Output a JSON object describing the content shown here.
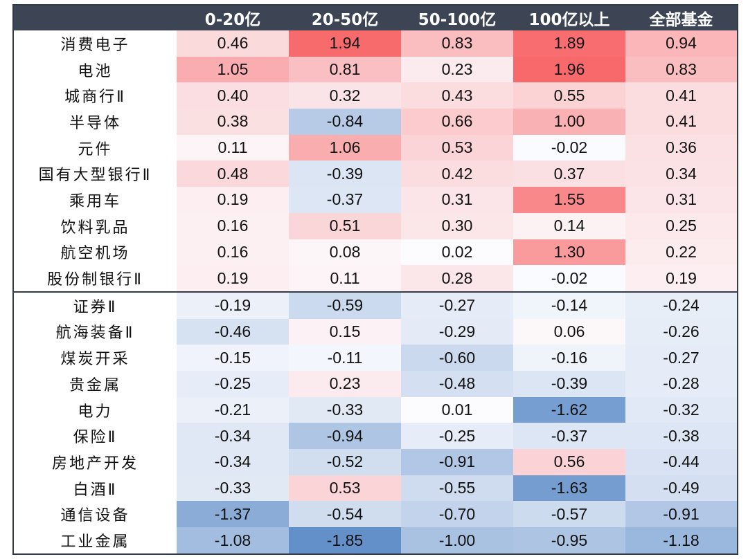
{
  "chart_data": {
    "type": "heatmap",
    "columns": [
      "0-20亿",
      "20-50亿",
      "50-100亿",
      "100亿以上",
      "全部基金"
    ],
    "rows": [
      {
        "label": "消费电子",
        "values": [
          0.46,
          1.94,
          0.83,
          1.89,
          0.94
        ]
      },
      {
        "label": "电池",
        "values": [
          1.05,
          0.81,
          0.23,
          1.96,
          0.83
        ]
      },
      {
        "label": "城商行Ⅱ",
        "values": [
          0.4,
          0.32,
          0.43,
          0.55,
          0.41
        ]
      },
      {
        "label": "半导体",
        "values": [
          0.38,
          -0.84,
          0.66,
          1.0,
          0.41
        ]
      },
      {
        "label": "元件",
        "values": [
          0.11,
          1.06,
          0.53,
          -0.02,
          0.36
        ]
      },
      {
        "label": "国有大型银行Ⅱ",
        "values": [
          0.48,
          -0.39,
          0.42,
          0.37,
          0.34
        ]
      },
      {
        "label": "乘用车",
        "values": [
          0.19,
          -0.37,
          0.31,
          1.55,
          0.31
        ]
      },
      {
        "label": "饮料乳品",
        "values": [
          0.16,
          0.51,
          0.3,
          0.14,
          0.25
        ]
      },
      {
        "label": "航空机场",
        "values": [
          0.16,
          0.08,
          0.02,
          1.3,
          0.22
        ]
      },
      {
        "label": "股份制银行Ⅱ",
        "values": [
          0.19,
          0.11,
          0.28,
          -0.02,
          0.19
        ]
      },
      {
        "label": "证券Ⅱ",
        "values": [
          -0.19,
          -0.59,
          -0.27,
          -0.14,
          -0.24
        ]
      },
      {
        "label": "航海装备Ⅱ",
        "values": [
          -0.46,
          0.15,
          -0.29,
          0.06,
          -0.26
        ]
      },
      {
        "label": "煤炭开采",
        "values": [
          -0.15,
          -0.11,
          -0.6,
          -0.16,
          -0.27
        ]
      },
      {
        "label": "贵金属",
        "values": [
          -0.25,
          0.23,
          -0.48,
          -0.39,
          -0.28
        ]
      },
      {
        "label": "电力",
        "values": [
          -0.21,
          -0.33,
          0.01,
          -1.62,
          -0.32
        ]
      },
      {
        "label": "保险Ⅱ",
        "values": [
          -0.34,
          -0.94,
          -0.25,
          -0.37,
          -0.38
        ]
      },
      {
        "label": "房地产开发",
        "values": [
          -0.34,
          -0.52,
          -0.91,
          0.56,
          -0.44
        ]
      },
      {
        "label": "白酒Ⅱ",
        "values": [
          -0.33,
          0.53,
          -0.55,
          -1.63,
          -0.49
        ]
      },
      {
        "label": "通信设备",
        "values": [
          -1.37,
          -0.54,
          -0.7,
          -0.57,
          -0.91
        ]
      },
      {
        "label": "工业金属",
        "values": [
          -1.08,
          -1.85,
          -1.0,
          -0.95,
          -1.18
        ]
      }
    ],
    "divider_after_row": 10,
    "color_scale": {
      "positive": "#f8696b",
      "neutral": "#fcfcff",
      "negative": "#5a8ac6",
      "max_abs": 1.96
    },
    "header_bg": "#3d4454",
    "header_text": "#ffffff"
  }
}
